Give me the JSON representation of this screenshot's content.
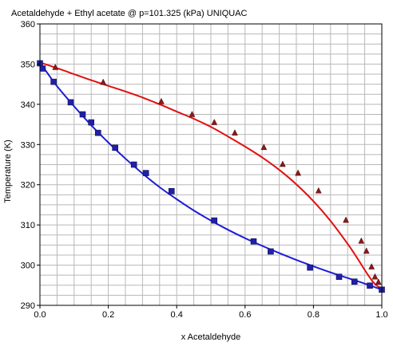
{
  "chart_data": {
    "type": "line",
    "title": "Acetaldehyde + Ethyl acetate @ p=101.325 (kPa) UNIQUAC",
    "xlabel": "x Acetaldehyde",
    "ylabel": "Temperature (K)",
    "xlim": [
      0.0,
      1.0
    ],
    "ylim": [
      290,
      360
    ],
    "xticks": [
      "0.0",
      "0.2",
      "0.4",
      "0.6",
      "0.8",
      "1.0"
    ],
    "yticks": [
      "290",
      "300",
      "310",
      "320",
      "330",
      "340",
      "350",
      "360"
    ],
    "grid": true,
    "colors": {
      "liquid": "#1c1cd6",
      "vapor": "#e01010",
      "liquid_points": "#2020a8",
      "vapor_points": "#8b1a1a",
      "grid": "#b8b8b8"
    },
    "series": [
      {
        "kind": "curve",
        "color_key": "vapor",
        "x": [
          0.0,
          0.05,
          0.1,
          0.15,
          0.2,
          0.25,
          0.3,
          0.35,
          0.4,
          0.45,
          0.5,
          0.55,
          0.6,
          0.65,
          0.7,
          0.75,
          0.8,
          0.85,
          0.9,
          0.93,
          0.95,
          0.97,
          0.98,
          0.99,
          1.0
        ],
        "y": [
          350.4,
          349.0,
          347.5,
          346.0,
          344.6,
          343.2,
          341.7,
          340.0,
          338.2,
          336.4,
          334.4,
          332.0,
          329.5,
          326.8,
          323.7,
          320.1,
          315.9,
          311.0,
          305.3,
          301.5,
          298.8,
          296.3,
          295.3,
          294.6,
          293.8
        ]
      },
      {
        "kind": "curve",
        "color_key": "liquid",
        "x": [
          0.0,
          0.02,
          0.05,
          0.1,
          0.15,
          0.2,
          0.25,
          0.3,
          0.35,
          0.4,
          0.45,
          0.5,
          0.55,
          0.6,
          0.65,
          0.7,
          0.75,
          0.8,
          0.85,
          0.9,
          0.95,
          1.0
        ],
        "y": [
          350.4,
          348.0,
          344.5,
          339.5,
          334.8,
          330.5,
          326.5,
          322.8,
          319.4,
          316.4,
          313.6,
          311.1,
          308.8,
          306.7,
          304.8,
          303.0,
          301.3,
          299.7,
          298.2,
          296.8,
          295.4,
          293.9
        ]
      },
      {
        "kind": "points",
        "marker": "triangle",
        "color_key": "vapor_points",
        "x": [
          0.0,
          0.045,
          0.185,
          0.355,
          0.445,
          0.51,
          0.57,
          0.655,
          0.71,
          0.755,
          0.815,
          0.895,
          0.94,
          0.955,
          0.97,
          0.98,
          0.99,
          1.0
        ],
        "y": [
          350.2,
          349.2,
          345.5,
          340.7,
          337.5,
          335.5,
          332.9,
          329.3,
          325.1,
          322.9,
          318.5,
          311.2,
          306.0,
          303.5,
          299.6,
          297.1,
          295.8,
          293.9
        ]
      },
      {
        "kind": "points",
        "marker": "square",
        "color_key": "liquid_points",
        "x": [
          0.0,
          0.008,
          0.04,
          0.09,
          0.125,
          0.15,
          0.17,
          0.22,
          0.275,
          0.31,
          0.385,
          0.51,
          0.625,
          0.675,
          0.79,
          0.875,
          0.92,
          0.965,
          1.0
        ],
        "y": [
          350.2,
          348.9,
          345.6,
          340.5,
          337.5,
          335.5,
          332.9,
          329.2,
          325.0,
          322.9,
          318.4,
          311.1,
          305.9,
          303.4,
          299.4,
          297.1,
          295.9,
          294.9,
          293.9
        ]
      }
    ]
  }
}
